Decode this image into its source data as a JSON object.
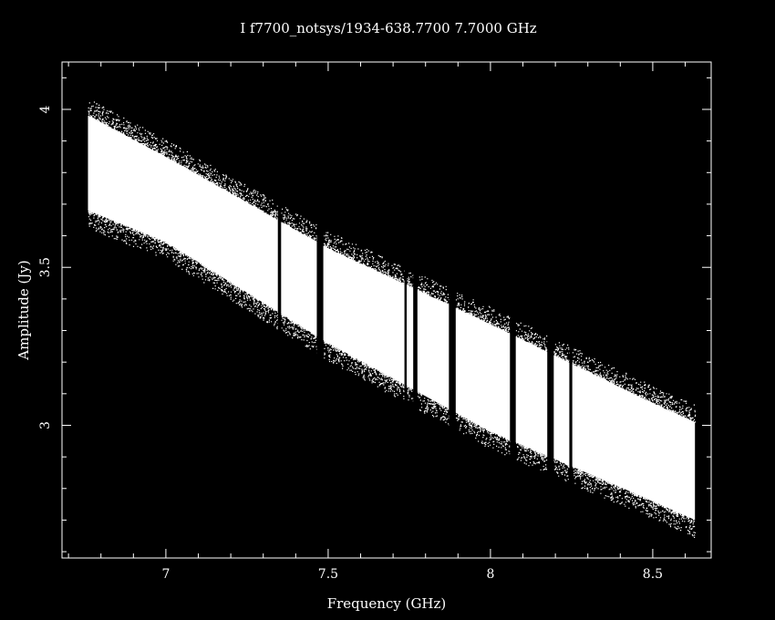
{
  "chart_data": {
    "type": "scatter",
    "title": "I f7700_notsys/1934-638.7700 7.7000 GHz",
    "xlabel": "Frequency (GHz)",
    "ylabel": "Amplitude (Jy)",
    "xlim": [
      6.68,
      8.68
    ],
    "ylim": [
      2.58,
      4.15
    ],
    "x_ticks": [
      {
        "value": 7,
        "label": "7"
      },
      {
        "value": 7.5,
        "label": "7.5"
      },
      {
        "value": 8,
        "label": "8"
      },
      {
        "value": 8.5,
        "label": "8.5"
      }
    ],
    "y_ticks": [
      {
        "value": 3,
        "label": "3"
      },
      {
        "value": 3.5,
        "label": "3.5"
      },
      {
        "value": 4,
        "label": "4"
      }
    ],
    "grid": false,
    "legend": "none",
    "colors": {
      "background": "#000000",
      "foreground": "#ffffff"
    },
    "series": [
      {
        "x_range": [
          6.76,
          8.63
        ],
        "upper_edge": [
          [
            6.76,
            4.0
          ],
          [
            7.0,
            3.87
          ],
          [
            7.5,
            3.58
          ],
          [
            8.0,
            3.34
          ],
          [
            8.5,
            3.09
          ],
          [
            8.63,
            3.03
          ]
        ],
        "lower_edge": [
          [
            6.76,
            3.66
          ],
          [
            7.0,
            3.56
          ],
          [
            7.5,
            3.24
          ],
          [
            8.0,
            2.96
          ],
          [
            8.5,
            2.74
          ],
          [
            8.63,
            2.68
          ]
        ],
        "gaps": [
          {
            "start": 7.345,
            "end": 7.355
          },
          {
            "start": 7.465,
            "end": 7.485
          },
          {
            "start": 7.735,
            "end": 7.742
          },
          {
            "start": 7.762,
            "end": 7.775
          },
          {
            "start": 7.872,
            "end": 7.893
          },
          {
            "start": 8.06,
            "end": 8.078
          },
          {
            "start": 8.175,
            "end": 8.195
          },
          {
            "start": 8.243,
            "end": 8.252
          }
        ]
      }
    ]
  }
}
